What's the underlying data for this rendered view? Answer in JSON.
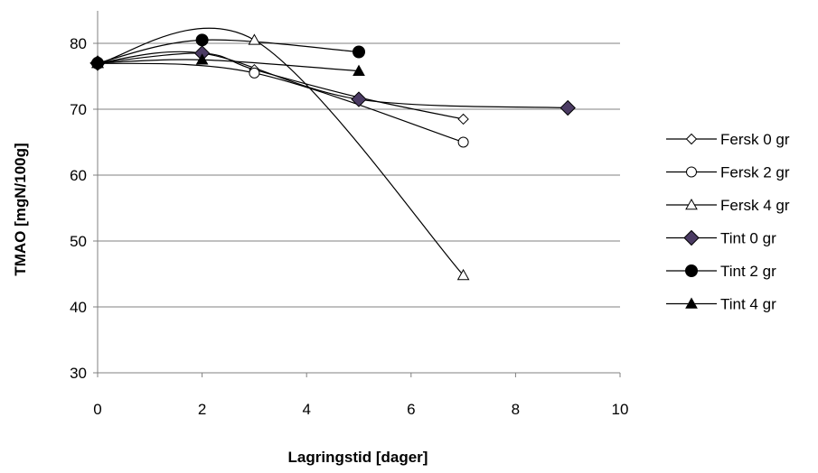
{
  "chart_data": {
    "type": "scatter",
    "title": "",
    "xlabel": "Lagringstid [dager]",
    "ylabel": "TMAO [mgN/100g]",
    "xlim": [
      0,
      10
    ],
    "ylim": [
      30,
      85
    ],
    "xticks": [
      "0",
      "2",
      "4",
      "6",
      "8",
      "10"
    ],
    "yticks": [
      "30",
      "40",
      "50",
      "60",
      "70",
      "80"
    ],
    "grid": "horizontal",
    "legend_position": "right",
    "series": [
      {
        "name": "Fersk 0 gr",
        "marker": "diamond-open",
        "x": [
          0,
          2,
          3,
          5,
          7
        ],
        "y": [
          77.0,
          78.5,
          76.0,
          71.8,
          68.5
        ]
      },
      {
        "name": "Fersk 2 gr",
        "marker": "circle-open",
        "x": [
          0,
          3,
          7
        ],
        "y": [
          77.0,
          75.5,
          65.0
        ]
      },
      {
        "name": "Fersk 4 gr",
        "marker": "triangle-open",
        "x": [
          0,
          3,
          7
        ],
        "y": [
          77.0,
          80.5,
          44.8
        ]
      },
      {
        "name": "Tint 0 gr",
        "marker": "diamond-filled",
        "x": [
          0,
          2,
          5,
          9
        ],
        "y": [
          77.0,
          78.5,
          71.5,
          70.2
        ]
      },
      {
        "name": "Tint 2 gr",
        "marker": "circle-filled",
        "x": [
          0,
          2,
          5
        ],
        "y": [
          77.0,
          80.5,
          78.7
        ]
      },
      {
        "name": "Tint 4 gr",
        "marker": "triangle-filled",
        "x": [
          0,
          2,
          5
        ],
        "y": [
          77.0,
          77.5,
          75.8
        ]
      }
    ]
  }
}
